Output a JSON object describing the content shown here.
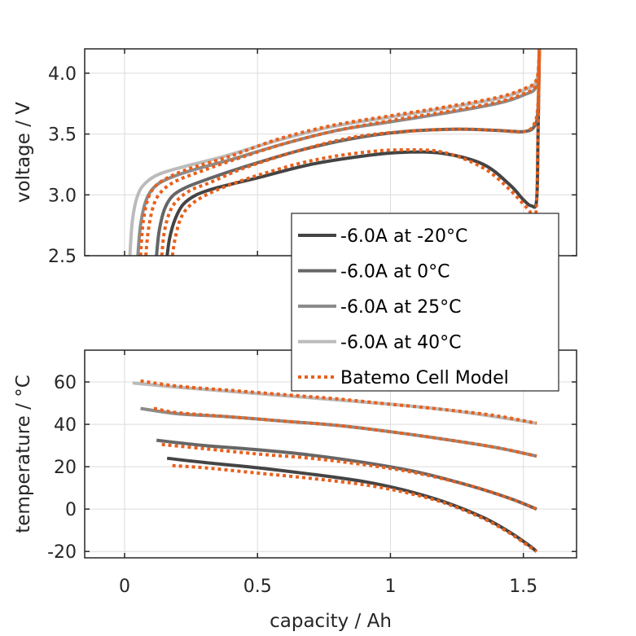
{
  "chart_data": [
    {
      "type": "line",
      "name": "voltage",
      "xlabel": "",
      "ylabel": "voltage / V",
      "xlim": [
        -0.15,
        1.7
      ],
      "ylim": [
        2.5,
        4.2
      ],
      "xticks": [
        0,
        0.5,
        1,
        1.5
      ],
      "yticks": [
        2.5,
        3.0,
        3.5,
        4.0
      ],
      "ytick_labels": [
        "2.5",
        "3.0",
        "3.5",
        "4.0"
      ],
      "grid": true,
      "legend": {
        "placement": "bottom-right",
        "entries": [
          "-6.0A at -20°C",
          "-6.0A at 0°C",
          "-6.0A at 25°C",
          "-6.0A at 40°C",
          "Batemo Cell Model"
        ]
      },
      "series": [
        {
          "name": "-6.0A at -20°C",
          "color": "#444444",
          "style": "solid",
          "x": [
            0.16,
            0.17,
            0.19,
            0.22,
            0.27,
            0.35,
            0.5,
            0.7,
            0.9,
            1.05,
            1.2,
            1.35,
            1.45,
            1.5,
            1.53,
            1.55,
            1.555,
            1.56
          ],
          "y": [
            2.5,
            2.65,
            2.8,
            2.92,
            3.0,
            3.06,
            3.14,
            3.25,
            3.32,
            3.35,
            3.34,
            3.25,
            3.08,
            2.96,
            2.91,
            2.96,
            3.5,
            4.2
          ]
        },
        {
          "name": "-6.0A at 0°C",
          "color": "#666666",
          "style": "solid",
          "x": [
            0.12,
            0.13,
            0.15,
            0.18,
            0.23,
            0.3,
            0.45,
            0.65,
            0.85,
            1.05,
            1.25,
            1.4,
            1.5,
            1.54,
            1.555,
            1.56
          ],
          "y": [
            2.5,
            2.7,
            2.88,
            2.99,
            3.06,
            3.12,
            3.23,
            3.36,
            3.46,
            3.52,
            3.54,
            3.53,
            3.52,
            3.56,
            3.7,
            4.2
          ]
        },
        {
          "name": "-6.0A at 25°C",
          "color": "#8c8c8c",
          "style": "solid",
          "x": [
            0.05,
            0.06,
            0.08,
            0.11,
            0.16,
            0.25,
            0.4,
            0.6,
            0.8,
            1.0,
            1.2,
            1.4,
            1.5,
            1.55,
            1.56
          ],
          "y": [
            2.5,
            2.75,
            2.95,
            3.06,
            3.13,
            3.2,
            3.29,
            3.42,
            3.53,
            3.6,
            3.67,
            3.75,
            3.82,
            3.9,
            4.2
          ]
        },
        {
          "name": "-6.0A at 40°C",
          "color": "#bbbbbb",
          "style": "solid",
          "x": [
            0.02,
            0.03,
            0.05,
            0.08,
            0.13,
            0.22,
            0.38,
            0.58,
            0.78,
            1.0,
            1.2,
            1.4,
            1.5,
            1.55,
            1.56
          ],
          "y": [
            2.5,
            2.8,
            3.0,
            3.1,
            3.17,
            3.23,
            3.32,
            3.45,
            3.56,
            3.64,
            3.71,
            3.79,
            3.86,
            3.94,
            4.2
          ]
        },
        {
          "name": "Batemo Cell Model (-20°C)",
          "color": "#e8601c",
          "style": "dotted",
          "x": [
            0.18,
            0.19,
            0.21,
            0.24,
            0.29,
            0.37,
            0.5,
            0.7,
            0.9,
            1.05,
            1.2,
            1.35,
            1.45,
            1.51,
            1.535,
            1.55,
            1.56
          ],
          "y": [
            2.5,
            2.64,
            2.8,
            2.9,
            2.98,
            3.06,
            3.16,
            3.28,
            3.35,
            3.37,
            3.35,
            3.22,
            3.04,
            2.9,
            2.85,
            2.95,
            4.2
          ]
        },
        {
          "name": "Batemo Cell Model (0°C)",
          "color": "#e8601c",
          "style": "dotted",
          "x": [
            0.14,
            0.15,
            0.17,
            0.2,
            0.25,
            0.32,
            0.45,
            0.65,
            0.85,
            1.05,
            1.25,
            1.4,
            1.5,
            1.54,
            1.555,
            1.56
          ],
          "y": [
            2.5,
            2.7,
            2.86,
            2.96,
            3.04,
            3.1,
            3.22,
            3.36,
            3.47,
            3.52,
            3.54,
            3.53,
            3.52,
            3.58,
            3.75,
            4.2
          ]
        },
        {
          "name": "Batemo Cell Model (25°C)",
          "color": "#e8601c",
          "style": "dotted",
          "x": [
            0.08,
            0.09,
            0.11,
            0.14,
            0.19,
            0.27,
            0.4,
            0.6,
            0.8,
            1.0,
            1.2,
            1.4,
            1.5,
            1.55,
            1.56
          ],
          "y": [
            2.5,
            2.72,
            2.92,
            3.03,
            3.11,
            3.18,
            3.28,
            3.42,
            3.53,
            3.61,
            3.68,
            3.76,
            3.83,
            3.91,
            4.2
          ]
        },
        {
          "name": "Batemo Cell Model (40°C)",
          "color": "#e8601c",
          "style": "dotted",
          "x": [
            0.06,
            0.07,
            0.09,
            0.12,
            0.17,
            0.25,
            0.4,
            0.58,
            0.78,
            1.0,
            1.2,
            1.4,
            1.5,
            1.55,
            1.56
          ],
          "y": [
            2.5,
            2.78,
            2.98,
            3.08,
            3.15,
            3.22,
            3.32,
            3.46,
            3.57,
            3.65,
            3.72,
            3.8,
            3.87,
            3.95,
            4.2
          ]
        }
      ]
    },
    {
      "type": "line",
      "name": "temperature",
      "xlabel": "capacity / Ah",
      "ylabel": "temperature / °C",
      "xlim": [
        -0.15,
        1.7
      ],
      "ylim": [
        -23,
        75
      ],
      "xticks": [
        0,
        0.5,
        1,
        1.5
      ],
      "xtick_labels": [
        "0",
        "0.5",
        "1",
        "1.5"
      ],
      "yticks": [
        -20,
        0,
        20,
        40,
        60
      ],
      "ytick_labels": [
        "-20",
        "0",
        "20",
        "40",
        "60"
      ],
      "grid": true,
      "series": [
        {
          "name": "-6.0A at -20°C",
          "color": "#444444",
          "style": "solid",
          "x": [
            0.16,
            0.3,
            0.5,
            0.7,
            0.9,
            1.05,
            1.2,
            1.35,
            1.45,
            1.52,
            1.55
          ],
          "y": [
            24,
            22,
            19.5,
            16.5,
            13,
            9,
            3.5,
            -4,
            -11,
            -17,
            -20
          ]
        },
        {
          "name": "-6.0A at 0°C",
          "color": "#666666",
          "style": "solid",
          "x": [
            0.12,
            0.3,
            0.5,
            0.7,
            0.9,
            1.1,
            1.3,
            1.45,
            1.55
          ],
          "y": [
            32.5,
            30,
            28,
            25.5,
            22,
            17.5,
            11,
            5,
            0
          ]
        },
        {
          "name": "-6.0A at 25°C",
          "color": "#8c8c8c",
          "style": "solid",
          "x": [
            0.06,
            0.2,
            0.4,
            0.6,
            0.8,
            1.0,
            1.2,
            1.4,
            1.55
          ],
          "y": [
            47.5,
            45,
            43.5,
            41.5,
            39.5,
            36.5,
            33,
            29,
            25
          ]
        },
        {
          "name": "-6.0A at 40°C",
          "color": "#bbbbbb",
          "style": "solid",
          "x": [
            0.03,
            0.2,
            0.4,
            0.6,
            0.8,
            1.0,
            1.2,
            1.4,
            1.55
          ],
          "y": [
            59.5,
            57.5,
            55.5,
            53.5,
            51.5,
            49.5,
            47,
            43.5,
            40.5
          ]
        },
        {
          "name": "Batemo Cell Model (-20°C)",
          "color": "#e8601c",
          "style": "dotted",
          "x": [
            0.18,
            0.3,
            0.5,
            0.7,
            0.9,
            1.05,
            1.2,
            1.35,
            1.45,
            1.52,
            1.55
          ],
          "y": [
            20.5,
            19.5,
            17,
            14.5,
            11.5,
            8,
            3,
            -4.5,
            -11.5,
            -17.5,
            -20
          ]
        },
        {
          "name": "Batemo Cell Model (0°C)",
          "color": "#e8601c",
          "style": "dotted",
          "x": [
            0.14,
            0.3,
            0.5,
            0.7,
            0.9,
            1.1,
            1.3,
            1.45,
            1.55
          ],
          "y": [
            30.5,
            28.5,
            26,
            24,
            21,
            17,
            11,
            5,
            0
          ]
        },
        {
          "name": "Batemo Cell Model (25°C)",
          "color": "#e8601c",
          "style": "dotted",
          "x": [
            0.11,
            0.2,
            0.4,
            0.6,
            0.8,
            1.0,
            1.2,
            1.4,
            1.55
          ],
          "y": [
            47.5,
            45.5,
            43.5,
            41.5,
            39.5,
            36.5,
            33,
            29,
            25
          ]
        },
        {
          "name": "Batemo Cell Model (40°C)",
          "color": "#e8601c",
          "style": "dotted",
          "x": [
            0.06,
            0.2,
            0.4,
            0.6,
            0.8,
            1.0,
            1.2,
            1.4,
            1.55
          ],
          "y": [
            60.5,
            58,
            56,
            54,
            52,
            49.5,
            47,
            44,
            40.5
          ]
        }
      ]
    }
  ]
}
